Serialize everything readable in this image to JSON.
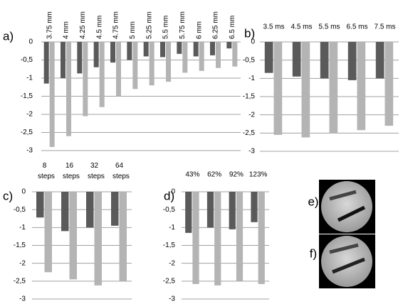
{
  "chart_data": [
    {
      "type": "bar",
      "panel_label": "a)",
      "categories": [
        "3.75 mm",
        "4 mm",
        "4.25 mm",
        "4.5 mm",
        "4.75 mm",
        "5 mm",
        "5.25 mm",
        "5.5 mm",
        "5.75 mm",
        "6 mm",
        "6.25 mm",
        "6.5 mm"
      ],
      "series": [
        {
          "color": "#5a5a5a",
          "values": [
            -1.15,
            -1.0,
            -0.87,
            -0.7,
            -0.57,
            -0.5,
            -0.4,
            -0.42,
            -0.33,
            -0.4,
            -0.37,
            -0.18
          ]
        },
        {
          "color": "#b4b4b4",
          "values": [
            -2.9,
            -2.6,
            -2.05,
            -1.8,
            -1.5,
            -1.3,
            -1.2,
            -1.1,
            -0.85,
            -0.8,
            -0.72,
            -0.68
          ]
        }
      ],
      "ylim": [
        -3,
        0
      ],
      "yticks": [
        0,
        {
          "value": -0.5,
          "label": "-0,5"
        },
        -1,
        {
          "value": -1.5,
          "label": "-1,5"
        },
        -2,
        {
          "value": -2.5,
          "label": "-2,5"
        },
        -3
      ],
      "grid": true
    },
    {
      "type": "bar",
      "panel_label": "b)",
      "categories": [
        "3.5 ms",
        "4.5 ms",
        "5.5 ms",
        "6.5 ms",
        "7.5 ms"
      ],
      "series": [
        {
          "color": "#5a5a5a",
          "values": [
            -0.85,
            -0.95,
            -1.0,
            -1.05,
            -1.0
          ]
        },
        {
          "color": "#b4b4b4",
          "values": [
            -2.55,
            -2.62,
            -2.5,
            -2.42,
            -2.3
          ]
        }
      ],
      "ylim": [
        -3,
        0
      ],
      "yticks": [
        0,
        {
          "value": -0.5,
          "label": "-0,5"
        },
        -1,
        {
          "value": -1.5,
          "label": "-1,5"
        },
        -2,
        {
          "value": -2.5,
          "label": "-2,5"
        },
        -3
      ],
      "grid": true
    },
    {
      "type": "bar",
      "panel_label": "c)",
      "categories": [
        "8 steps",
        "16 steps",
        "32 steps",
        "64 steps"
      ],
      "series": [
        {
          "color": "#5a5a5a",
          "values": [
            -0.72,
            -1.1,
            -1.0,
            -0.95
          ]
        },
        {
          "color": "#b4b4b4",
          "values": [
            -2.25,
            -2.45,
            -2.62,
            -2.5
          ]
        }
      ],
      "ylim": [
        -3,
        0
      ],
      "yticks": [
        0,
        {
          "value": -0.5,
          "label": "-0,5"
        },
        -1,
        {
          "value": -1.5,
          "label": "-1,5"
        },
        -2,
        {
          "value": -2.5,
          "label": "-2,5"
        },
        -3
      ],
      "grid": true
    },
    {
      "type": "bar",
      "panel_label": "d)",
      "categories": [
        "43%",
        "62%",
        "92%",
        "123%"
      ],
      "series": [
        {
          "color": "#5a5a5a",
          "values": [
            -1.15,
            -1.0,
            -1.05,
            -0.85
          ]
        },
        {
          "color": "#b4b4b4",
          "values": [
            -2.58,
            -2.62,
            -2.5,
            -2.58
          ]
        }
      ],
      "ylim": [
        -3,
        0
      ],
      "yticks": [
        0,
        {
          "value": -0.5,
          "label": "-0,5"
        },
        -1,
        {
          "value": -1.5,
          "label": "-1,5"
        },
        -2,
        {
          "value": -2.5,
          "label": "-2,5"
        },
        -3
      ],
      "grid": true
    }
  ],
  "images": [
    {
      "label": "e)"
    },
    {
      "label": "f)"
    }
  ]
}
